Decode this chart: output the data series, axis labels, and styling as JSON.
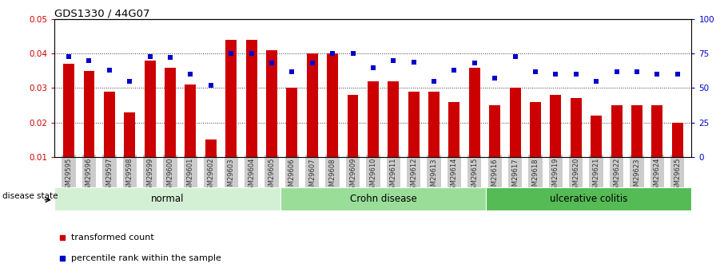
{
  "title": "GDS1330 / 44G07",
  "samples": [
    "GSM29595",
    "GSM29596",
    "GSM29597",
    "GSM29598",
    "GSM29599",
    "GSM29600",
    "GSM29601",
    "GSM29602",
    "GSM29603",
    "GSM29604",
    "GSM29605",
    "GSM29606",
    "GSM29607",
    "GSM29608",
    "GSM29609",
    "GSM29610",
    "GSM29611",
    "GSM29612",
    "GSM29613",
    "GSM29614",
    "GSM29615",
    "GSM29616",
    "GSM29617",
    "GSM29618",
    "GSM29619",
    "GSM29620",
    "GSM29621",
    "GSM29622",
    "GSM29623",
    "GSM29624",
    "GSM29625"
  ],
  "bar_values": [
    0.037,
    0.035,
    0.029,
    0.023,
    0.038,
    0.036,
    0.031,
    0.015,
    0.044,
    0.044,
    0.041,
    0.03,
    0.04,
    0.04,
    0.028,
    0.032,
    0.032,
    0.029,
    0.029,
    0.026,
    0.036,
    0.025,
    0.03,
    0.026,
    0.028,
    0.027,
    0.022,
    0.025,
    0.025,
    0.025,
    0.02
  ],
  "dot_values": [
    73,
    70,
    63,
    55,
    73,
    72,
    60,
    52,
    75,
    75,
    68,
    62,
    68,
    75,
    75,
    65,
    70,
    69,
    55,
    63,
    68,
    57,
    73,
    62,
    60,
    60,
    55,
    62,
    62,
    60,
    60
  ],
  "bar_color": "#cc0000",
  "dot_color": "#0000cc",
  "ylim_left": [
    0.01,
    0.05
  ],
  "ylim_right": [
    0,
    100
  ],
  "yticks_left": [
    0.01,
    0.02,
    0.03,
    0.04,
    0.05
  ],
  "yticks_right": [
    0,
    25,
    50,
    75,
    100
  ],
  "group_ends_adj": [
    11,
    21,
    31
  ],
  "group_starts_adj": [
    0,
    11,
    21
  ],
  "groups": [
    {
      "label": "normal",
      "start": 0,
      "end": 11,
      "color": "#d4f0d4"
    },
    {
      "label": "Crohn disease",
      "start": 11,
      "end": 21,
      "color": "#99dd99"
    },
    {
      "label": "ulcerative colitis",
      "start": 21,
      "end": 31,
      "color": "#55bb55"
    }
  ],
  "disease_state_label": "disease state",
  "legend_bar_label": "transformed count",
  "legend_dot_label": "percentile rank within the sample",
  "bar_width": 0.55,
  "background_color": "#ffffff",
  "grid_color": "#000000",
  "tick_label_color_left": "#cc0000",
  "tick_label_color_right": "#0000cc",
  "xticklabel_bg": "#cccccc"
}
